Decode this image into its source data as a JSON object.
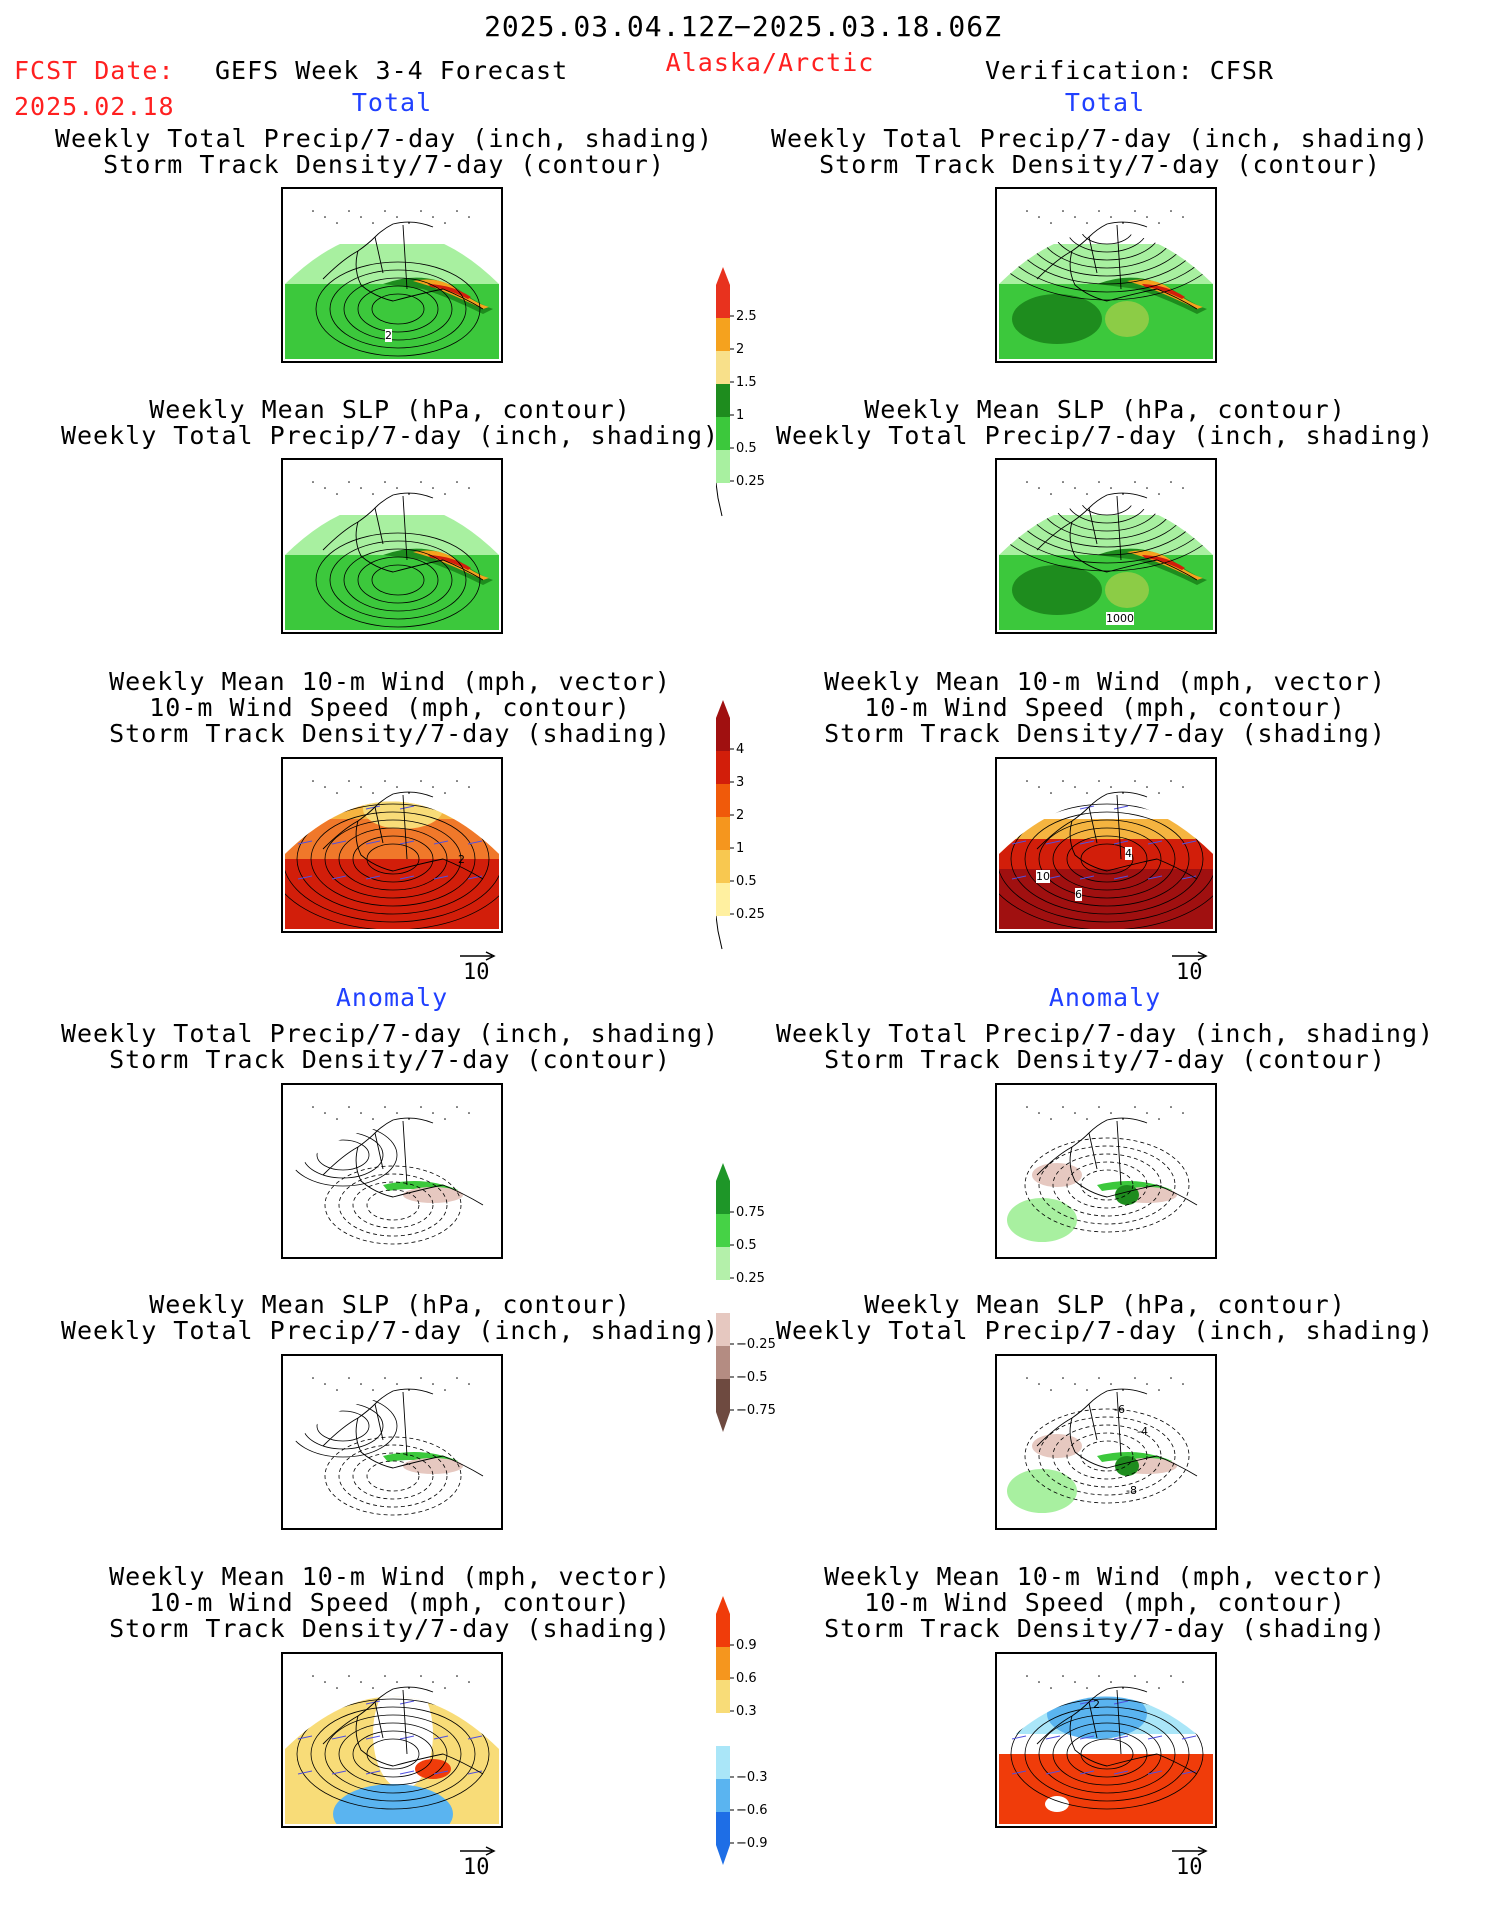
{
  "header": {
    "valid_range": "2025.03.04.12Z−2025.03.18.06Z",
    "fcst_label": "FCST Date:",
    "fcst_date": "2025.02.18",
    "model": "GEFS Week 3-4 Forecast",
    "region": "Alaska/Arctic",
    "verification": "Verification: CFSR"
  },
  "sections": {
    "total": "Total",
    "anomaly": "Anomaly"
  },
  "panel_titles": {
    "precip_storm": [
      "Weekly Total Precip/7-day (inch, shading)",
      "Storm Track Density/7-day (contour)"
    ],
    "slp_precip": [
      "Weekly Mean SLP (hPa, contour)",
      "Weekly Total Precip/7-day (inch, shading)"
    ],
    "wind_storm": [
      "Weekly Mean 10-m Wind (mph, vector)",
      "10-m Wind Speed (mph, contour)",
      "Storm Track Density/7-day (shading)"
    ]
  },
  "contour_labels": {
    "fcst_precip_storm": "2",
    "fcst_wind_storm": "2",
    "ver_slp_precip": "1000",
    "ver_wind_10": "10",
    "ver_wind_4": "4",
    "ver_wind_6": "6",
    "ver_anom_slp_6": "-6",
    "ver_anom_slp_4": "-4",
    "ver_anom_slp_8": "-8",
    "ver_anom_wind_2": "2"
  },
  "vector_scale": "10",
  "colorbars": {
    "precip_total": {
      "labels": [
        "2.5",
        "2",
        "1.5",
        "1",
        "0.5",
        "0.25"
      ],
      "colors": [
        "#e8321e",
        "#f5a21e",
        "#f8e08a",
        "#1e8c1e",
        "#3cc83c",
        "#a8f0a0"
      ]
    },
    "storm_total": {
      "labels": [
        "4",
        "3",
        "2",
        "1",
        "0.5",
        "0.25"
      ],
      "colors": [
        "#a01010",
        "#d21e0a",
        "#f05a0a",
        "#f5961e",
        "#f8c850",
        "#fff0a0"
      ]
    },
    "precip_anom": {
      "labels": [
        "0.75",
        "0.5",
        "0.25",
        "−0.25",
        "−0.5",
        "−0.75"
      ],
      "colors_pos": [
        "#1e9628",
        "#46d246",
        "#b4f0aa"
      ],
      "colors_neg": [
        "#e6c8c0",
        "#b48c82",
        "#6e4a40"
      ]
    },
    "storm_anom": {
      "labels": [
        "0.9",
        "0.6",
        "0.3",
        "−0.3",
        "−0.6",
        "−0.9"
      ],
      "colors_pos": [
        "#f03c0a",
        "#f5961e",
        "#f8dc78"
      ],
      "colors_neg": [
        "#aae6f8",
        "#5ab4f0",
        "#1e6ee6"
      ]
    }
  },
  "map_colors": {
    "precip_green_light": "#a8f0a0",
    "precip_green": "#3cc83c",
    "precip_green_dark": "#1e8c1e",
    "storm_orange": "#f5a21e",
    "storm_red": "#d21e0a",
    "anom_brown": "#e6c8c0",
    "anom_blue": "#5ab4f0",
    "vector_blue": "#5050e0"
  }
}
